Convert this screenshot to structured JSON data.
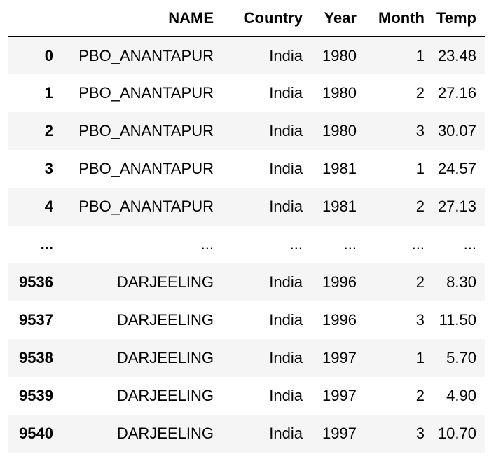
{
  "table": {
    "columns": [
      "",
      "NAME",
      "Country",
      "Year",
      "Month",
      "Temp"
    ],
    "rows": [
      {
        "index": "0",
        "NAME": "PBO_ANANTAPUR",
        "Country": "India",
        "Year": "1980",
        "Month": "1",
        "Temp": "23.48"
      },
      {
        "index": "1",
        "NAME": "PBO_ANANTAPUR",
        "Country": "India",
        "Year": "1980",
        "Month": "2",
        "Temp": "27.16"
      },
      {
        "index": "2",
        "NAME": "PBO_ANANTAPUR",
        "Country": "India",
        "Year": "1980",
        "Month": "3",
        "Temp": "30.07"
      },
      {
        "index": "3",
        "NAME": "PBO_ANANTAPUR",
        "Country": "India",
        "Year": "1981",
        "Month": "1",
        "Temp": "24.57"
      },
      {
        "index": "4",
        "NAME": "PBO_ANANTAPUR",
        "Country": "India",
        "Year": "1981",
        "Month": "2",
        "Temp": "27.13"
      },
      {
        "index": "...",
        "NAME": "...",
        "Country": "...",
        "Year": "...",
        "Month": "...",
        "Temp": "..."
      },
      {
        "index": "9536",
        "NAME": "DARJEELING",
        "Country": "India",
        "Year": "1996",
        "Month": "2",
        "Temp": "8.30"
      },
      {
        "index": "9537",
        "NAME": "DARJEELING",
        "Country": "India",
        "Year": "1996",
        "Month": "3",
        "Temp": "11.50"
      },
      {
        "index": "9538",
        "NAME": "DARJEELING",
        "Country": "India",
        "Year": "1997",
        "Month": "1",
        "Temp": "5.70"
      },
      {
        "index": "9539",
        "NAME": "DARJEELING",
        "Country": "India",
        "Year": "1997",
        "Month": "2",
        "Temp": "4.90"
      },
      {
        "index": "9540",
        "NAME": "DARJEELING",
        "Country": "India",
        "Year": "1997",
        "Month": "3",
        "Temp": "10.70"
      }
    ]
  }
}
